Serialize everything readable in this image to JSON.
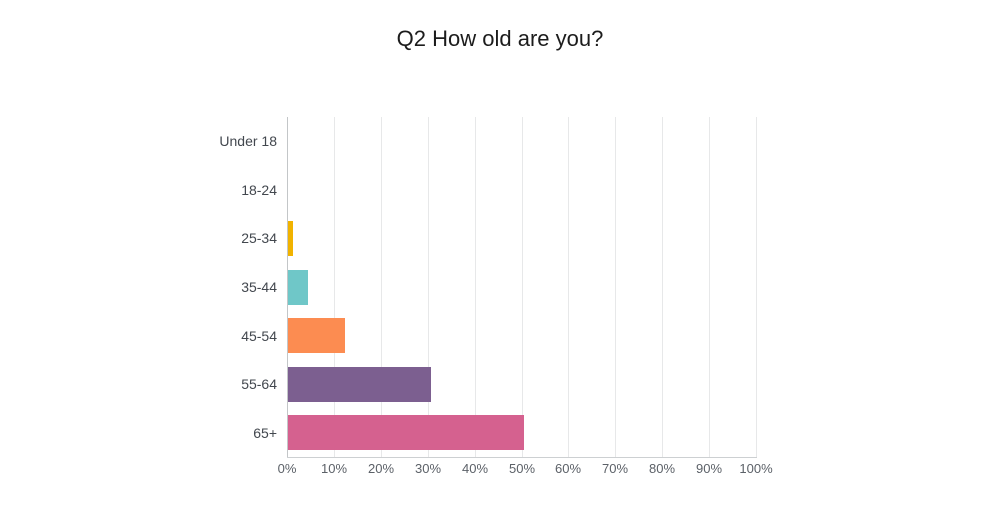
{
  "page": {
    "background": "#ffffff"
  },
  "title": "Q2 How old are you?",
  "chart_data": {
    "type": "bar",
    "orientation": "horizontal",
    "title": "Q2 How old are you?",
    "categories": [
      "Under 18",
      "18-24",
      "25-34",
      "35-44",
      "45-54",
      "55-64",
      "65+"
    ],
    "values": [
      0,
      0,
      1.1,
      4.2,
      12.2,
      30.4,
      50.4
    ],
    "value_unit": "%",
    "bar_colors": [
      null,
      null,
      "#F1B300",
      "#6FC7C8",
      "#FC8C51",
      "#7C5F90",
      "#D5618F"
    ],
    "x_ticks": [
      "0%",
      "10%",
      "20%",
      "30%",
      "40%",
      "50%",
      "60%",
      "70%",
      "80%",
      "90%",
      "100%"
    ],
    "xlim": [
      0,
      100
    ],
    "xlabel": "",
    "ylabel": "",
    "grid": "vertical-gridlines-on",
    "legend": "none",
    "axis_line_color": "#c3c6c8",
    "gridline_color": "#e7e8e9",
    "category_label_color": "#42474e",
    "tick_label_color": "#5c6168",
    "title_color": "#1c1c1c"
  }
}
